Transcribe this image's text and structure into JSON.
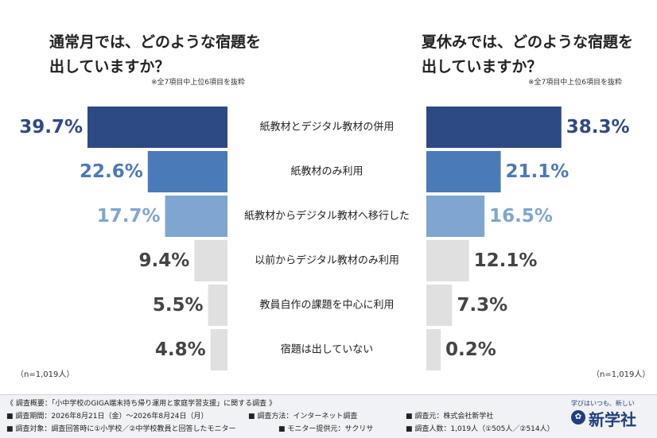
{
  "chart_data": {
    "type": "bar",
    "categories": [
      "紙教材とデジタル教材の併用",
      "紙教材のみ利用",
      "紙教材からデジタル教材へ移行した",
      "以前からデジタル教材のみ利用",
      "教員自作の課題を中心に利用",
      "宿題は出していない"
    ],
    "series": [
      {
        "title": "通常月では、どのような宿題を\n出していますか？",
        "note": "※全7項目中上位6項目を抜粋",
        "n": "（n=1,019人）",
        "values": [
          39.7,
          22.6,
          17.7,
          9.4,
          5.5,
          4.8
        ],
        "value_labels": [
          "39.7%",
          "22.6%",
          "17.7%",
          "9.4%",
          "5.5%",
          "4.8%"
        ]
      },
      {
        "title": "夏休みでは、どのような宿題を\n出していますか？",
        "note": "※全7項目中上位6項目を抜粋",
        "n": "（n=1,019人）",
        "values": [
          38.3,
          21.1,
          16.5,
          12.1,
          7.3,
          0.2
        ],
        "value_labels": [
          "38.3%",
          "21.1%",
          "16.5%",
          "12.1%",
          "7.3%",
          "0.2%"
        ]
      }
    ],
    "xlim": [
      0,
      40
    ],
    "colors": {
      "rank1": "#2e4a85",
      "rank2": "#4a7ab8",
      "rank3": "#7ea6d0",
      "others": "#e0e0e0",
      "label_dark": "#2e4a85",
      "label_mid": "#4a7ab8",
      "label_light": "#7ea6d0",
      "label_gray": "#444444"
    }
  },
  "footer": {
    "line1": "《 調査概要：「小中学校のGIGA端末持ち帰り運用と家庭学習支援」に関する調査 》",
    "line2a": "■ 調査期間：2026年8月21日（金）〜2026年8月24日（月）",
    "line2b": "■ 調査方法：インターネット調査",
    "line2c": "■ 調査元：株式会社新学社",
    "line3a": "■ 調査対象：調査回答時に①小学校／②中学校教員と回答したモニター",
    "line3b": "■ モニター提供元：サクリサ",
    "line3c": "■ 調査人数：1,019人（①505人／②514人）"
  },
  "logo": {
    "tagline": "学びはいつも、新しい",
    "name": "新学社",
    "icon": "shingakusha-logo-icon"
  }
}
